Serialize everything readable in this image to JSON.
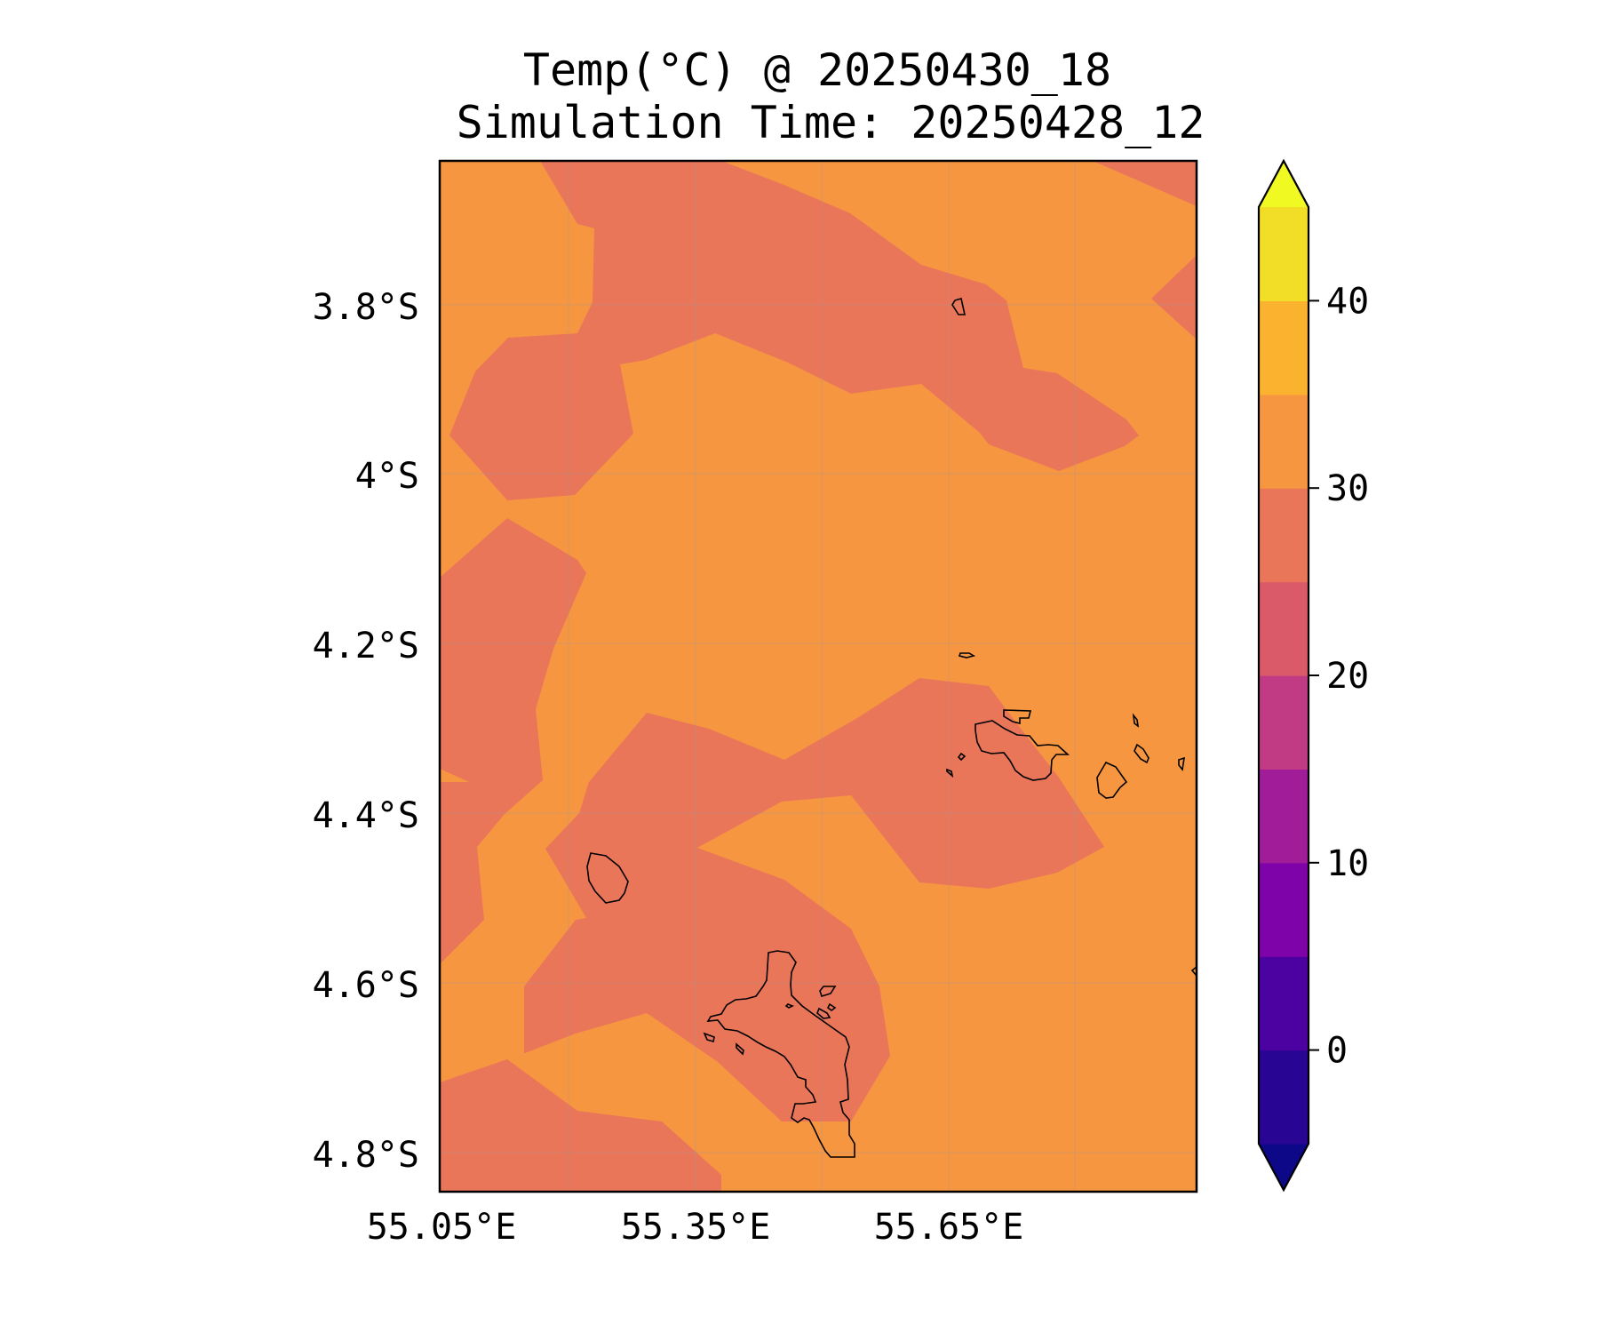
{
  "title": {
    "line1": "Temp(°C) @ 20250430_18",
    "line2": "Simulation Time: 20250428_12"
  },
  "map": {
    "lat_ticks": [
      "3.8°S",
      "4°S",
      "4.2°S",
      "4.4°S",
      "4.6°S",
      "4.8°S"
    ],
    "lon_ticks": [
      "55.05°E",
      "55.35°E",
      "55.65°E"
    ],
    "background_color": "#f69641",
    "region_color": "#ea765a",
    "coastline_color": "#000000",
    "gridlines": true
  },
  "colorbar": {
    "labels": [
      "0",
      "10",
      "20",
      "30",
      "40"
    ],
    "levels": [
      -5,
      0,
      5,
      10,
      15,
      20,
      25,
      30,
      35,
      40,
      45
    ],
    "extend": "both",
    "colors": [
      "#0d0887",
      "#290593",
      "#4c02a1",
      "#7e03a8",
      "#a01c98",
      "#c03b83",
      "#da5a6a",
      "#ea765a",
      "#f69641",
      "#fbb32f",
      "#f2de26",
      "#f0f921"
    ]
  }
}
